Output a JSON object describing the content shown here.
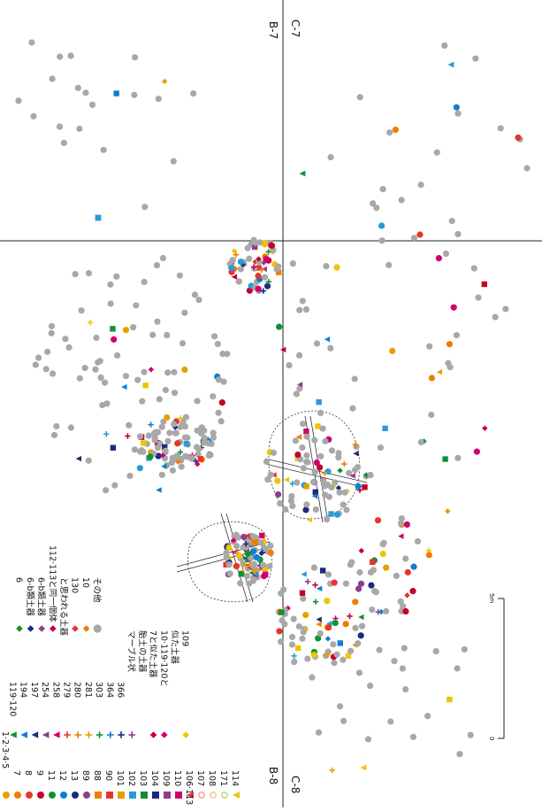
{
  "grid_labels": {
    "top_left": "B-7",
    "top_right": "C-7",
    "bottom_left": "B-8",
    "bottom_right": "C-8"
  },
  "scale_bar": {
    "start_label": "0",
    "end_label": "5m"
  },
  "legend": {
    "left_column": [
      {
        "label": "1·2·3·4·5",
        "color": "#e5a000",
        "shape": "circle"
      },
      {
        "label": "7",
        "color": "#f07c00",
        "shape": "circle"
      },
      {
        "label": "8",
        "color": "#e8342a",
        "shape": "circle"
      },
      {
        "label": "9",
        "color": "#c8002a",
        "shape": "circle"
      },
      {
        "label": "11",
        "color": "#139034",
        "shape": "circle"
      },
      {
        "label": "12",
        "color": "#0d7fcf",
        "shape": "circle"
      },
      {
        "label": "13",
        "color": "#1b2a7f",
        "shape": "circle"
      },
      {
        "label": "89",
        "color": "#8d3f8f",
        "shape": "circle"
      },
      {
        "label": "88",
        "color": "#f07c00",
        "shape": "square"
      },
      {
        "label": "90",
        "color": "#e8342a",
        "shape": "square"
      },
      {
        "label": "101",
        "color": "#e5a000",
        "shape": "square"
      },
      {
        "label": "102",
        "color": "#2a9ad8",
        "shape": "square"
      },
      {
        "label": "103",
        "color": "#139034",
        "shape": "square"
      },
      {
        "label": "104",
        "color": "#1b2a7f",
        "shape": "square"
      },
      {
        "label": "109",
        "color": "#8d3f8f",
        "shape": "square"
      },
      {
        "label": "110",
        "color": "#d0006f",
        "shape": "square"
      },
      {
        "label": "106·113",
        "color": "#e8342a",
        "shape": "triangle"
      },
      {
        "label": "107",
        "color": "#f2a08a",
        "shape": "ring"
      },
      {
        "label": "108",
        "color": "#f5c28a",
        "shape": "ring"
      },
      {
        "label": "171",
        "color": "#b9d36a",
        "shape": "ring"
      },
      {
        "label": "114",
        "color": "#f0c400",
        "shape": "triangle"
      }
    ],
    "middle_column": [
      {
        "label": "119·120",
        "color": "#139034",
        "shape": "triangle"
      },
      {
        "label": "194",
        "color": "#0d7fcf",
        "shape": "triangle"
      },
      {
        "label": "197",
        "color": "#1b2a7f",
        "shape": "triangle"
      },
      {
        "label": "254",
        "color": "#8d3f8f",
        "shape": "triangle"
      },
      {
        "label": "258",
        "color": "#d0006f",
        "shape": "triangle"
      },
      {
        "label": "279",
        "color": "#e8342a",
        "shape": "plus"
      },
      {
        "label": "280",
        "color": "#f07c00",
        "shape": "plus"
      },
      {
        "label": "281",
        "color": "#e5a000",
        "shape": "plus"
      },
      {
        "label": "303",
        "color": "#139034",
        "shape": "plus"
      },
      {
        "label": "364",
        "color": "#0d7fcf",
        "shape": "plus"
      },
      {
        "label": "366",
        "color": "#1b2a7f",
        "shape": "plus"
      },
      {
        "label": "マーブル状",
        "color": "#8d3f8f",
        "shape": "plus"
      },
      {
        "label": "胎土の土器",
        "color": "",
        "shape": "none"
      },
      {
        "label": "7と似た土器",
        "color": "#c8002a",
        "shape": "diamond"
      },
      {
        "label": "10·119·120と",
        "color": "#d0006f",
        "shape": "diamond"
      },
      {
        "label": "似た土器",
        "color": "",
        "shape": "none"
      },
      {
        "label": "109",
        "color": "#f0c400",
        "shape": "diamond"
      }
    ],
    "right_column": [
      {
        "label": "6",
        "color": "#139034",
        "shape": "diamond"
      },
      {
        "label": "6-b類土器",
        "color": "#1b2a7f",
        "shape": "diamond"
      },
      {
        "label": "6-b類土器",
        "color": "#8d3f8f",
        "shape": "diamond"
      },
      {
        "label": "112·113と同一個体",
        "color": "#c8002a",
        "shape": "diamond"
      },
      {
        "label": "と思われる土器",
        "color": "",
        "shape": "none"
      },
      {
        "label": "130",
        "color": "#e8342a",
        "shape": "diamond"
      },
      {
        "label": "10",
        "color": "#f07c00",
        "shape": "diamond"
      },
      {
        "label": "その他",
        "color": "#a8a8a8",
        "shape": "circle"
      }
    ]
  }
}
